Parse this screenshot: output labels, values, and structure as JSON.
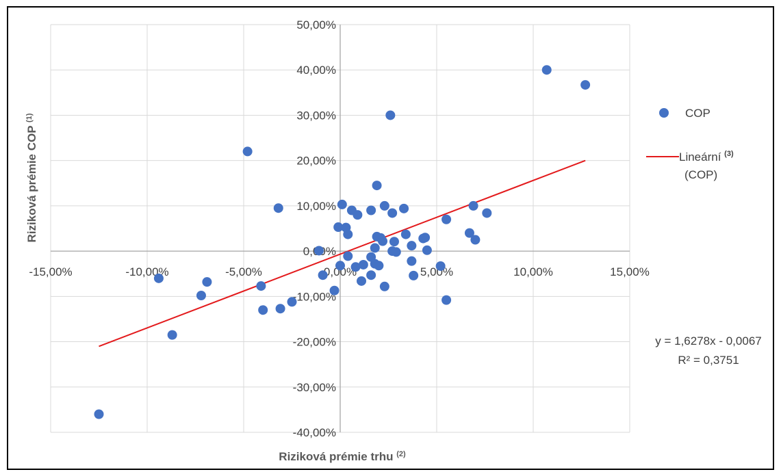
{
  "chart_data": {
    "type": "scatter",
    "xlabel": "Riziková prémie trhu",
    "xlabel_sup": "(2)",
    "ylabel": "Riziková prémie COP",
    "ylabel_sup": "(1)",
    "xlim": [
      -0.15,
      0.15
    ],
    "ylim": [
      -0.4,
      0.5
    ],
    "x_ticks": [
      -0.15,
      -0.1,
      -0.05,
      0.0,
      0.05,
      0.1,
      0.15
    ],
    "x_tick_labels": [
      "-15,00%",
      "-10,00%",
      "-5,00%",
      "0,00%",
      "5,00%",
      "10,00%",
      "15,00%"
    ],
    "y_ticks": [
      0.5,
      0.4,
      0.3,
      0.2,
      0.1,
      0.0,
      -0.1,
      -0.2,
      -0.3,
      -0.4
    ],
    "y_tick_labels": [
      "50,00%",
      "40,00%",
      "30,00%",
      "20,00%",
      "10,00%",
      "0,00%",
      "-10,00%",
      "-20,00%",
      "-30,00%",
      "-40,00%"
    ],
    "grid": true,
    "legend_position": "right",
    "series": [
      {
        "name": "COP",
        "color": "#4472c4",
        "points": [
          [
            -0.125,
            -0.36
          ],
          [
            -0.094,
            -0.06
          ],
          [
            -0.087,
            -0.185
          ],
          [
            -0.072,
            -0.098
          ],
          [
            -0.069,
            -0.068
          ],
          [
            -0.048,
            0.22
          ],
          [
            -0.041,
            -0.077
          ],
          [
            -0.04,
            -0.13
          ],
          [
            -0.032,
            0.095
          ],
          [
            -0.031,
            -0.127
          ],
          [
            -0.025,
            -0.112
          ],
          [
            -0.011,
            0.001
          ],
          [
            -0.009,
            -0.053
          ],
          [
            -0.003,
            -0.087
          ],
          [
            -0.001,
            0.053
          ],
          [
            0.0,
            -0.032
          ],
          [
            0.001,
            0.103
          ],
          [
            0.003,
            0.052
          ],
          [
            0.004,
            0.037
          ],
          [
            0.004,
            -0.011
          ],
          [
            0.006,
            0.09
          ],
          [
            0.008,
            -0.035
          ],
          [
            0.009,
            0.08
          ],
          [
            0.011,
            -0.066
          ],
          [
            0.012,
            -0.03
          ],
          [
            0.016,
            0.09
          ],
          [
            0.016,
            -0.053
          ],
          [
            0.016,
            -0.013
          ],
          [
            0.018,
            -0.028
          ],
          [
            0.018,
            0.007
          ],
          [
            0.019,
            0.145
          ],
          [
            0.019,
            0.032
          ],
          [
            0.02,
            -0.032
          ],
          [
            0.021,
            0.029
          ],
          [
            0.022,
            0.022
          ],
          [
            0.023,
            0.1
          ],
          [
            0.023,
            -0.078
          ],
          [
            0.026,
            0.3
          ],
          [
            0.027,
            0.084
          ],
          [
            0.027,
            0.0
          ],
          [
            0.028,
            0.021
          ],
          [
            0.029,
            -0.002
          ],
          [
            0.033,
            0.094
          ],
          [
            0.034,
            0.037
          ],
          [
            0.037,
            0.012
          ],
          [
            0.037,
            -0.022
          ],
          [
            0.038,
            -0.054
          ],
          [
            0.043,
            0.028
          ],
          [
            0.044,
            0.03
          ],
          [
            0.045,
            0.002
          ],
          [
            0.052,
            -0.033
          ],
          [
            0.055,
            0.07
          ],
          [
            0.055,
            -0.108
          ],
          [
            0.067,
            0.04
          ],
          [
            0.069,
            0.1
          ],
          [
            0.07,
            0.025
          ],
          [
            0.076,
            0.084
          ],
          [
            0.107,
            0.4
          ],
          [
            0.127,
            0.367
          ]
        ]
      },
      {
        "name": "Lineární",
        "name_sup": "(3)",
        "name_line2": "(COP)",
        "type": "trendline",
        "color": "#e31a1c",
        "x_range": [
          -0.125,
          0.127
        ],
        "slope": 1.6278,
        "intercept": -0.0067
      }
    ],
    "annotations": {
      "equation": "y = 1,6278x - 0,0067",
      "r_squared": "R² = 0,3751"
    }
  }
}
